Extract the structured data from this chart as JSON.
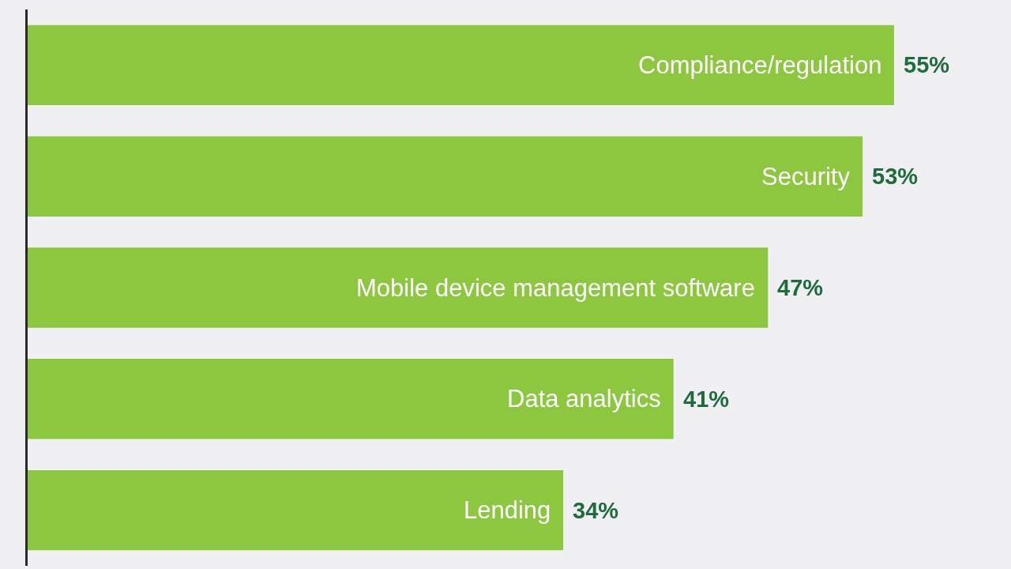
{
  "chart_data": {
    "type": "bar",
    "orientation": "horizontal",
    "categories": [
      "Compliance/regulation",
      "Security",
      "Mobile device management software",
      "Data analytics",
      "Lending"
    ],
    "values": [
      55,
      53,
      47,
      41,
      34
    ],
    "color": "#8dc63f",
    "value_labels": [
      "55%",
      "53%",
      "47%",
      "41%",
      "34%"
    ],
    "tick_labels": false
  }
}
